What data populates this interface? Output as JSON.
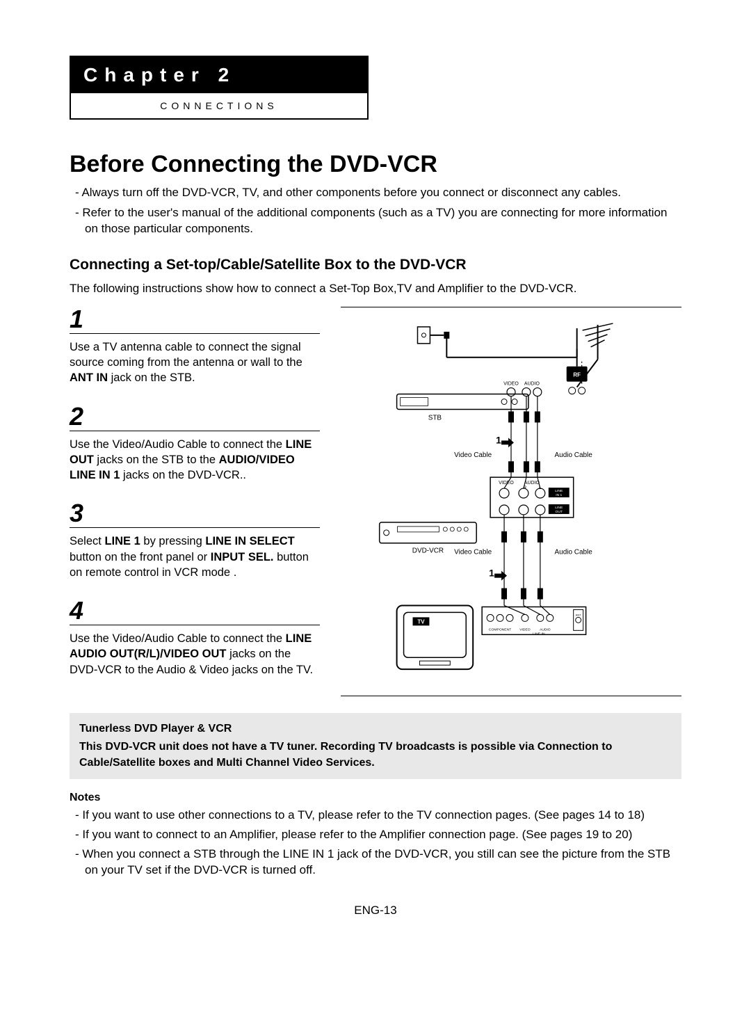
{
  "chapter": {
    "label": "Chapter 2",
    "subtitle": "CONNECTIONS"
  },
  "title": "Before Connecting the DVD-VCR",
  "intro": [
    "Always turn off the DVD-VCR, TV, and other components before you connect or disconnect any cables.",
    "Refer to the user's manual of the additional components (such as a TV) you are connecting for more information on those particular components."
  ],
  "subheading": "Connecting a Set-top/Cable/Satellite Box to the DVD-VCR",
  "leadin": "The following instructions show how to connect a Set-Top Box,TV and Amplifier to the DVD-VCR.",
  "steps": [
    {
      "num": "1",
      "html": "Use a TV antenna cable to connect the signal source coming from the antenna or wall to the <b>ANT IN</b> jack on the STB."
    },
    {
      "num": "2",
      "html": "Use the Video/Audio Cable to connect the <b>LINE OUT</b> jacks on the STB to the <b>AUDIO/VIDEO LINE IN 1</b> jacks on the DVD-VCR.."
    },
    {
      "num": "3",
      "html": "Select <b>LINE 1</b> by pressing <b>LINE IN SELECT</b> button on the front panel or <b>INPUT SEL.</b> button on remote control in VCR mode ."
    },
    {
      "num": "4",
      "html": "Use the Video/Audio Cable to connect the <b>LINE AUDIO OUT(R/L)/VIDEO OUT</b> jacks on the DVD-VCR to the Audio & Video jacks on the TV."
    }
  ],
  "tuner_note": {
    "title": "Tunerless DVD Player & VCR",
    "body": "This DVD-VCR unit does not have a TV tuner. Recording TV broadcasts is possible via Connection to Cable/Satellite boxes and Multi Channel Video Services."
  },
  "notes_heading": "Notes",
  "notes": [
    "If you want to use other connections to a TV, please refer to the TV connection pages. (See pages 14 to 18)",
    "If you want to connect to an Amplifier, please refer to the Amplifier connection page. (See pages 19 to 20)",
    "When you connect a STB through the LINE IN 1 jack of the DVD-VCR, you still can see the picture from the STB  on your TV set if the DVD-VCR is turned off."
  ],
  "page_number": "ENG-13",
  "diagram": {
    "labels": {
      "stb": "STB",
      "dvdvcr": "DVD-VCR",
      "tv": "TV",
      "video_cable": "Video Cable",
      "audio_cable": "Audio Cable",
      "video": "VIDEO",
      "audio": "AUDIO",
      "rf": "RF",
      "line_in1": "LINE IN 1",
      "line_out": "LINE OUT",
      "component": "COMPONENT",
      "line_in": "LINE IN",
      "ant": "ANT"
    },
    "colors": {
      "line": "#000000",
      "bg": "#ffffff"
    }
  }
}
